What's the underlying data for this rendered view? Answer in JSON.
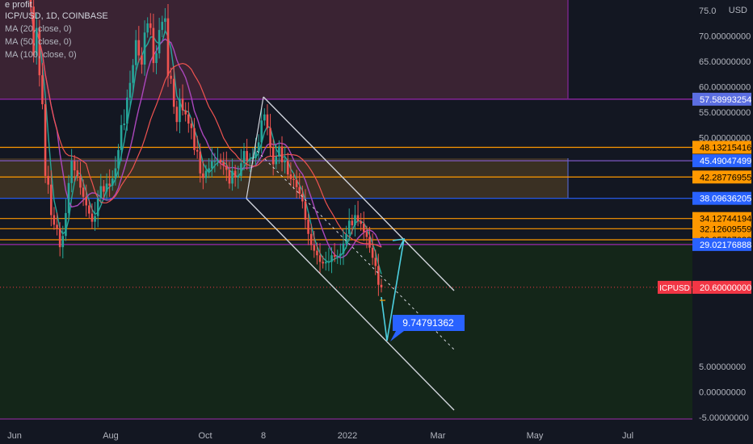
{
  "overlay_text": "e profit",
  "legend": {
    "symbol": "ICP/USD, 1D, COINBASE",
    "ma1": "MA (20, close, 0)",
    "ma2": "MA (50, close, 0)",
    "ma3": "MA (100, close, 0)"
  },
  "chart_data": {
    "type": "candlestick",
    "title": "ICP/USD, 1D, COINBASE",
    "currency_label": "USD",
    "ylim": [
      -5,
      76
    ],
    "y_ticks": [
      {
        "value": 75,
        "label": "75.0"
      },
      {
        "value": 70,
        "label": "70.00000000"
      },
      {
        "value": 65,
        "label": "65.00000000"
      },
      {
        "value": 60,
        "label": "60.00000000"
      },
      {
        "value": 55,
        "label": "55.00000000"
      },
      {
        "value": 50,
        "label": "50.00000000"
      },
      {
        "value": 5,
        "label": "5.00000000"
      },
      {
        "value": 0,
        "label": "0.00000000"
      },
      {
        "value": -5,
        "label": "-5.00000000"
      }
    ],
    "x_ticks": [
      "Jun",
      "Aug",
      "Oct",
      "8",
      "2022",
      "Mar",
      "May",
      "Jul"
    ],
    "price_levels": [
      {
        "value": 57.58993254,
        "label": "57.58993254",
        "color": "#5b6ee1",
        "line": "#9c27b0"
      },
      {
        "value": 48.13215416,
        "label": "48.13215416",
        "color": "#ff9800",
        "line": "#ff9800"
      },
      {
        "value": 45.49047499,
        "label": "45.49047499",
        "color": "#2962ff",
        "line": "#7e57c2"
      },
      {
        "value": 42.28776955,
        "label": "42.28776955",
        "color": "#ff9800",
        "line": "#ff9800"
      },
      {
        "value": 38.09636205,
        "label": "38.09636205",
        "color": "#2962ff",
        "line": "#2962ff"
      },
      {
        "value": 34.12744194,
        "label": "34.12744194",
        "color": "#ff9800",
        "line": "#ff9800"
      },
      {
        "value": 32.12609559,
        "label": "32.12609559",
        "color": "#ff9800",
        "line": "#ff9800"
      },
      {
        "value": 29.95797038,
        "label": "29.95797038",
        "color": "#ff9800",
        "line": "#ff9800"
      },
      {
        "value": 29.02176888,
        "label": "29.02176888",
        "color": "#2962ff",
        "line": "#9c27b0"
      }
    ],
    "current_price": {
      "symbol": "ICPUSD",
      "value": 20.6,
      "label": "20.60000000",
      "color": "#f23645"
    },
    "target_label": "9.74791362",
    "colors": {
      "up": "#26a69a",
      "down": "#ef5350",
      "ma20": "#26a69a",
      "ma50": "#ab47bc",
      "ma100": "#ef5350",
      "channel": "#d1d4dc",
      "projection": "#4dd0e1"
    },
    "candles_close": [
      75.8,
      66.2,
      71.6,
      62.3,
      56.6,
      42.5,
      40.8,
      34.8,
      32.9,
      32.2,
      28.5,
      30.7,
      35.2,
      41.1,
      45.4,
      43.6,
      42.5,
      40.2,
      38.4,
      36.7,
      35.1,
      33.5,
      34.6,
      38.1,
      40.5,
      39.4,
      41.0,
      40.6,
      42.0,
      44.0,
      47.6,
      52.5,
      52.8,
      57.9,
      60.8,
      64.3,
      69.2,
      66.2,
      64.4,
      70.7,
      72.5,
      71.6,
      64.7,
      66.6,
      71.2,
      72.8,
      73.5,
      62.2,
      61.6,
      56.1,
      53.1,
      57.7,
      55.4,
      54.6,
      52.8,
      51.9,
      47.6,
      47.3,
      43.0,
      42.1,
      43.5,
      44.0,
      45.4,
      45.4,
      45.7,
      45.2,
      44.5,
      43.7,
      41.0,
      43.5,
      42.2,
      42.5,
      45.0,
      47.4,
      45.5,
      45.8,
      46.0,
      47.2,
      49.1,
      53.4,
      54.6,
      51.9,
      48.1,
      44.8,
      46.3,
      48.3,
      45.2,
      45.5,
      42.8,
      41.9,
      41.7,
      40.3,
      39.0,
      37.5,
      33.9,
      31.1,
      28.9,
      27.8,
      26.9,
      25.6,
      25.3,
      25.6,
      25.6,
      26.9,
      26.6,
      26.8,
      27.2,
      29.2,
      31.1,
      33.7,
      32.8,
      34.8,
      33.6,
      33.1,
      31.5,
      30.5,
      28.4,
      26.4,
      24.8,
      21.1,
      20.6
    ]
  }
}
